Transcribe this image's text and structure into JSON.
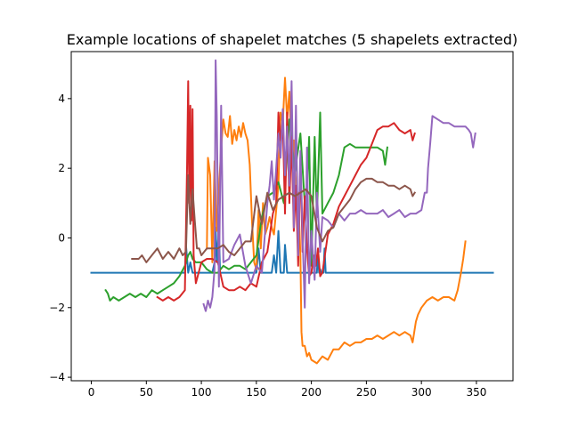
{
  "chart_data": {
    "type": "line",
    "title": "Example locations of shapelet matches (5 shapelets extracted)",
    "xlabel": "",
    "ylabel": "",
    "xlim": [
      -18.25,
      383.25
    ],
    "ylim": [
      -4.1,
      5.35
    ],
    "xticks": [
      0,
      50,
      100,
      150,
      200,
      250,
      300,
      350
    ],
    "yticks": [
      -4,
      -2,
      0,
      2,
      4
    ],
    "grid": false,
    "legend": "none",
    "series": [
      {
        "color": "#1f77b4",
        "x": [
          0,
          85,
          86,
          88,
          90,
          92,
          100,
          110,
          112,
          113,
          114,
          116,
          117,
          118,
          120,
          150,
          152,
          154,
          156,
          158,
          160,
          162,
          164,
          166,
          168,
          170,
          172,
          174,
          175,
          176,
          178,
          180,
          200,
          205,
          206,
          207,
          208,
          209,
          210,
          211,
          212,
          213,
          214,
          215,
          216,
          220,
          250,
          300,
          365
        ],
        "y": [
          -1,
          -1,
          -0.2,
          -1,
          -0.7,
          -1,
          -1,
          -1,
          -0.7,
          0.3,
          -0.7,
          0.3,
          -1,
          -1,
          -1,
          -1,
          -0.3,
          -1,
          -1,
          -1,
          -1,
          -1,
          -1,
          -0.5,
          -1,
          0.2,
          -1,
          -1,
          -1,
          -0.2,
          -1,
          -1,
          -1,
          -1,
          -0.4,
          -1,
          -0.9,
          -1,
          -1,
          -1,
          -0.3,
          -1,
          -1,
          -1,
          -1,
          -1,
          -1,
          -1,
          -1
        ]
      },
      {
        "color": "#ff7f0e",
        "x": [
          105,
          106,
          108,
          110,
          112,
          114,
          118,
          120,
          122,
          124,
          126,
          128,
          130,
          132,
          134,
          136,
          138,
          140,
          142,
          144,
          146,
          148,
          150,
          152,
          154,
          156,
          158,
          160,
          162,
          164,
          166,
          168,
          170,
          172,
          174,
          176,
          178,
          180,
          182,
          184,
          186,
          188,
          190,
          191,
          192,
          194,
          196,
          198,
          200,
          205,
          210,
          215,
          220,
          225,
          230,
          235,
          240,
          245,
          250,
          255,
          260,
          265,
          270,
          275,
          280,
          285,
          290,
          292,
          295,
          297,
          300,
          305,
          310,
          315,
          320,
          325,
          330,
          333,
          336,
          338,
          340
        ],
        "y": [
          -0.3,
          2.3,
          1.8,
          -0.7,
          2.2,
          0.2,
          2.6,
          3.4,
          3.0,
          2.9,
          3.5,
          2.7,
          3.1,
          2.8,
          3.2,
          2.9,
          3.3,
          3.0,
          2.8,
          2.1,
          0.5,
          -0.7,
          -0.9,
          0.8,
          -0.3,
          1.0,
          0.1,
          0.3,
          0.6,
          0.3,
          0.1,
          0.8,
          1.5,
          3.6,
          3.3,
          4.6,
          3.4,
          4.2,
          2.3,
          2.8,
          1.1,
          1.3,
          -0.5,
          -2.7,
          -3.1,
          -3.1,
          -3.4,
          -3.3,
          -3.5,
          -3.6,
          -3.4,
          -3.5,
          -3.2,
          -3.2,
          -3.0,
          -3.1,
          -3.0,
          -3.0,
          -2.9,
          -2.9,
          -2.8,
          -2.9,
          -2.8,
          -2.7,
          -2.8,
          -2.7,
          -2.8,
          -3.0,
          -2.4,
          -2.2,
          -2.0,
          -1.8,
          -1.7,
          -1.8,
          -1.7,
          -1.7,
          -1.8,
          -1.5,
          -1.0,
          -0.6,
          -0.1
        ]
      },
      {
        "color": "#2ca02c",
        "x": [
          13,
          15,
          17,
          20,
          25,
          30,
          35,
          40,
          45,
          50,
          55,
          60,
          65,
          70,
          75,
          80,
          85,
          88,
          90,
          92,
          95,
          100,
          105,
          110,
          115,
          120,
          125,
          130,
          135,
          140,
          145,
          150,
          155,
          160,
          165,
          170,
          175,
          180,
          185,
          190,
          195,
          198,
          200,
          203,
          205,
          208,
          210,
          215,
          220,
          225,
          230,
          235,
          240,
          245,
          250,
          255,
          260,
          265,
          267,
          269
        ],
        "y": [
          -1.5,
          -1.6,
          -1.8,
          -1.7,
          -1.8,
          -1.7,
          -1.6,
          -1.7,
          -1.6,
          -1.7,
          -1.5,
          -1.6,
          -1.5,
          -1.4,
          -1.3,
          -1.1,
          -0.8,
          -0.5,
          -0.4,
          -0.6,
          -0.7,
          -0.7,
          -0.9,
          -1.0,
          -1.0,
          -0.8,
          -0.9,
          -0.8,
          -0.8,
          -0.9,
          -0.7,
          -0.5,
          0.6,
          1.2,
          1.3,
          1.6,
          1.0,
          3.4,
          1.9,
          3.0,
          0.5,
          2.9,
          -0.8,
          2.9,
          0.6,
          3.6,
          0.7,
          1.0,
          1.3,
          1.8,
          2.6,
          2.7,
          2.6,
          2.6,
          2.6,
          2.6,
          2.6,
          2.5,
          2.1,
          2.6
        ]
      },
      {
        "color": "#d62728",
        "x": [
          60,
          65,
          70,
          75,
          80,
          85,
          87,
          88,
          89,
          90,
          91,
          92,
          93,
          95,
          100,
          105,
          110,
          115,
          120,
          125,
          130,
          135,
          140,
          145,
          150,
          155,
          160,
          165,
          168,
          170,
          172,
          174,
          176,
          178,
          180,
          182,
          184,
          186,
          188,
          190,
          192,
          194,
          196,
          198,
          200,
          202,
          204,
          206,
          208,
          210,
          215,
          220,
          225,
          230,
          235,
          240,
          245,
          250,
          255,
          260,
          265,
          270,
          275,
          280,
          285,
          290,
          292,
          294
        ],
        "y": [
          -1.7,
          -1.8,
          -1.7,
          -1.8,
          -1.7,
          -1.5,
          2.0,
          4.5,
          1.0,
          3.8,
          0.5,
          3.7,
          -0.5,
          -1.3,
          -0.7,
          -0.6,
          -0.6,
          -0.7,
          -1.4,
          -1.5,
          -1.5,
          -1.4,
          -1.5,
          -1.3,
          -1.4,
          -0.7,
          -0.4,
          0.7,
          1.0,
          3.6,
          2.8,
          3.4,
          0.7,
          3.6,
          1.0,
          2.9,
          0.2,
          1.5,
          -0.8,
          2.3,
          -0.4,
          1.2,
          -0.3,
          -1.1,
          -1.0,
          -0.5,
          -0.8,
          -0.3,
          -1.1,
          -1.0,
          0.1,
          0.4,
          0.9,
          1.2,
          1.5,
          1.8,
          2.1,
          2.3,
          2.7,
          3.1,
          3.2,
          3.2,
          3.3,
          3.1,
          3.0,
          3.1,
          2.8,
          3.0
        ]
      },
      {
        "color": "#9467bd",
        "x": [
          102,
          104,
          106,
          108,
          110,
          112,
          113,
          114,
          116,
          118,
          120,
          125,
          130,
          135,
          140,
          145,
          150,
          155,
          160,
          162,
          164,
          166,
          168,
          170,
          172,
          174,
          176,
          178,
          180,
          182,
          184,
          186,
          188,
          190,
          192,
          194,
          196,
          198,
          200,
          203,
          205,
          208,
          210,
          215,
          220,
          225,
          230,
          235,
          240,
          245,
          250,
          255,
          260,
          265,
          270,
          275,
          280,
          285,
          290,
          295,
          300,
          303,
          305,
          306,
          308,
          310,
          315,
          320,
          325,
          330,
          335,
          340,
          343,
          345,
          347,
          349
        ],
        "y": [
          -1.9,
          -2.1,
          -1.8,
          -2.0,
          -1.7,
          -0.9,
          5.1,
          3.5,
          -1.4,
          3.8,
          -0.7,
          -0.6,
          -0.2,
          0.1,
          -0.8,
          -1.3,
          -0.8,
          -1.0,
          1.0,
          1.5,
          2.2,
          1.1,
          2.0,
          3.0,
          2.3,
          3.7,
          1.8,
          3.2,
          1.5,
          4.5,
          0.3,
          3.8,
          -0.5,
          2.5,
          0.1,
          -2.0,
          2.6,
          -1.3,
          0.2,
          -1.2,
          1.3,
          -0.4,
          0.6,
          0.5,
          0.3,
          0.7,
          0.5,
          0.7,
          0.7,
          0.8,
          0.7,
          0.7,
          0.7,
          0.8,
          0.6,
          0.7,
          0.8,
          0.6,
          0.7,
          0.7,
          0.8,
          1.3,
          1.3,
          2.0,
          2.7,
          3.5,
          3.4,
          3.3,
          3.3,
          3.2,
          3.2,
          3.2,
          3.1,
          3.0,
          2.6,
          3.0
        ]
      },
      {
        "color": "#8c564b",
        "x": [
          37,
          40,
          43,
          46,
          50,
          55,
          60,
          65,
          70,
          75,
          80,
          83,
          86,
          88,
          90,
          92,
          94,
          96,
          98,
          100,
          105,
          110,
          115,
          120,
          125,
          130,
          135,
          140,
          145,
          150,
          155,
          160,
          165,
          170,
          175,
          180,
          185,
          190,
          195,
          200,
          205,
          210,
          215,
          220,
          225,
          230,
          235,
          240,
          245,
          250,
          255,
          260,
          265,
          270,
          275,
          280,
          285,
          290,
          292,
          294
        ],
        "y": [
          -0.6,
          -0.6,
          -0.6,
          -0.5,
          -0.7,
          -0.5,
          -0.3,
          -0.6,
          -0.4,
          -0.6,
          -0.3,
          -0.5,
          -0.4,
          1.8,
          0.4,
          1.4,
          0.5,
          -0.3,
          -0.3,
          -0.5,
          -0.3,
          -0.3,
          -0.3,
          -0.2,
          -0.4,
          -0.5,
          -0.3,
          -0.1,
          -0.1,
          1.2,
          0.4,
          1.3,
          0.8,
          1.1,
          1.2,
          1.3,
          1.2,
          1.3,
          1.4,
          1.2,
          0.3,
          -0.1,
          0.2,
          0.3,
          0.7,
          0.9,
          1.1,
          1.4,
          1.6,
          1.7,
          1.7,
          1.6,
          1.6,
          1.5,
          1.5,
          1.4,
          1.5,
          1.4,
          1.2,
          1.3
        ]
      }
    ]
  }
}
